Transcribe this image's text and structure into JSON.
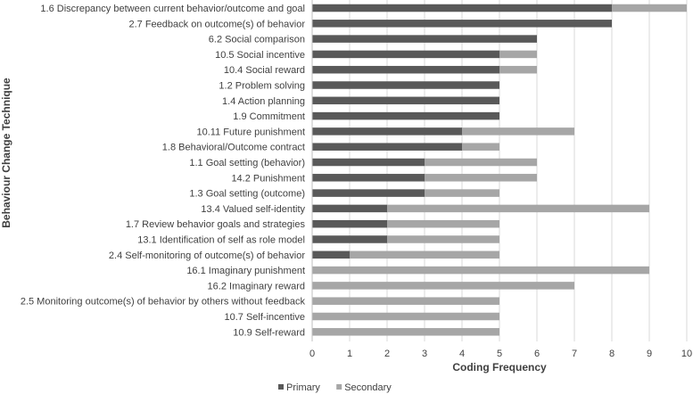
{
  "chart_data": {
    "type": "bar",
    "orientation": "horizontal",
    "stacked": true,
    "categories": [
      "1.6 Discrepancy between current behavior/outcome and goal",
      "2.7 Feedback on outcome(s) of behavior",
      "6.2 Social comparison",
      "10.5 Social incentive",
      "10.4 Social reward",
      "1.2 Problem solving",
      "1.4 Action planning",
      "1.9 Commitment",
      "10.11 Future punishment",
      "1.8 Behavioral/Outcome contract",
      "1.1 Goal setting (behavior)",
      "14.2 Punishment",
      "1.3 Goal setting (outcome)",
      "13.4 Valued self-identity",
      "1.7 Review behavior goals and strategies",
      "13.1 Identification of self as role model",
      "2.4 Self-monitoring of outcome(s) of behavior",
      "16.1 Imaginary punishment",
      "16.2 Imaginary reward",
      "2.5 Monitoring outcome(s) of behavior by others without feedback",
      "10.7 Self-incentive",
      "10.9 Self-reward"
    ],
    "series": [
      {
        "name": "Primary",
        "color": "#595959",
        "values": [
          8,
          8,
          6,
          5,
          5,
          5,
          5,
          5,
          4,
          4,
          3,
          3,
          3,
          2,
          2,
          2,
          1,
          0,
          0,
          0,
          0,
          0
        ]
      },
      {
        "name": "Secondary",
        "color": "#a6a6a6",
        "values": [
          2,
          0,
          0,
          1,
          1,
          0,
          0,
          0,
          3,
          1,
          3,
          3,
          2,
          7,
          3,
          3,
          4,
          9,
          7,
          5,
          5,
          5
        ]
      }
    ],
    "xlabel": "Coding Frequency",
    "ylabel": "Behaviour Change Technique",
    "xlim": [
      0,
      10
    ],
    "xticks": [
      "0",
      "1",
      "2",
      "3",
      "4",
      "5",
      "6",
      "7",
      "8",
      "9",
      "10"
    ],
    "grid": "vertical",
    "legend": "bottom"
  }
}
